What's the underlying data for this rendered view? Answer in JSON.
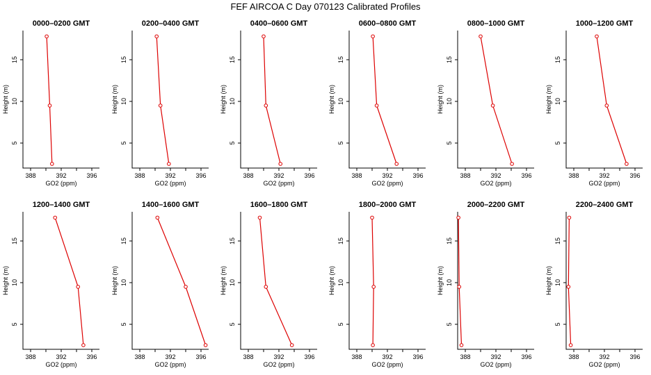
{
  "figure": {
    "title": "FEF AIRCOA C  Day 070123  Calibrated Profiles"
  },
  "colors": {
    "series": "#dd0000",
    "axis": "#000000",
    "background": "#ffffff"
  },
  "chart_data": [
    {
      "type": "line",
      "title": "0000–0200 GMT",
      "xlabel": "GO2 (ppm)",
      "ylabel": "Height (m)",
      "xlim": [
        387,
        397
      ],
      "ylim": [
        2,
        18.5
      ],
      "xticks": [
        388,
        392,
        396
      ],
      "yticks": [
        5,
        10,
        15
      ],
      "x": [
        390.1,
        390.5,
        390.8
      ],
      "y": [
        17.8,
        9.5,
        2.5
      ]
    },
    {
      "type": "line",
      "title": "0200–0400 GMT",
      "xlabel": "GO2 (ppm)",
      "ylabel": "Height (m)",
      "xlim": [
        387,
        397
      ],
      "ylim": [
        2,
        18.5
      ],
      "xticks": [
        388,
        392,
        396
      ],
      "yticks": [
        5,
        10,
        15
      ],
      "x": [
        390.2,
        390.7,
        391.8
      ],
      "y": [
        17.8,
        9.5,
        2.5
      ]
    },
    {
      "type": "line",
      "title": "0400–0600 GMT",
      "xlabel": "GO2 (ppm)",
      "ylabel": "Height (m)",
      "xlim": [
        387,
        397
      ],
      "ylim": [
        2,
        18.5
      ],
      "xticks": [
        388,
        392,
        396
      ],
      "yticks": [
        5,
        10,
        15
      ],
      "x": [
        390.0,
        390.3,
        392.2
      ],
      "y": [
        17.8,
        9.5,
        2.5
      ]
    },
    {
      "type": "line",
      "title": "0600–0800 GMT",
      "xlabel": "GO2 (ppm)",
      "ylabel": "Height (m)",
      "xlim": [
        387,
        397
      ],
      "ylim": [
        2,
        18.5
      ],
      "xticks": [
        388,
        392,
        396
      ],
      "yticks": [
        5,
        10,
        15
      ],
      "x": [
        390.1,
        390.6,
        393.2
      ],
      "y": [
        17.8,
        9.5,
        2.5
      ]
    },
    {
      "type": "line",
      "title": "0800–1000 GMT",
      "xlabel": "GO2 (ppm)",
      "ylabel": "Height (m)",
      "xlim": [
        387,
        397
      ],
      "ylim": [
        2,
        18.5
      ],
      "xticks": [
        388,
        392,
        396
      ],
      "yticks": [
        5,
        10,
        15
      ],
      "x": [
        390.0,
        391.6,
        394.1
      ],
      "y": [
        17.8,
        9.5,
        2.5
      ]
    },
    {
      "type": "line",
      "title": "1000–1200 GMT",
      "xlabel": "GO2 (ppm)",
      "ylabel": "Height (m)",
      "xlim": [
        387,
        397
      ],
      "ylim": [
        2,
        18.5
      ],
      "xticks": [
        388,
        392,
        396
      ],
      "yticks": [
        5,
        10,
        15
      ],
      "x": [
        391.0,
        392.3,
        394.9
      ],
      "y": [
        17.8,
        9.5,
        2.5
      ]
    },
    {
      "type": "line",
      "title": "1200–1400 GMT",
      "xlabel": "GO2 (ppm)",
      "ylabel": "Height (m)",
      "xlim": [
        387,
        397
      ],
      "ylim": [
        2,
        18.5
      ],
      "xticks": [
        388,
        392,
        396
      ],
      "yticks": [
        5,
        10,
        15
      ],
      "x": [
        391.2,
        394.2,
        394.9
      ],
      "y": [
        17.8,
        9.5,
        2.5
      ]
    },
    {
      "type": "line",
      "title": "1400–1600 GMT",
      "xlabel": "GO2 (ppm)",
      "ylabel": "Height (m)",
      "xlim": [
        387,
        397
      ],
      "ylim": [
        2,
        18.5
      ],
      "xticks": [
        388,
        392,
        396
      ],
      "yticks": [
        5,
        10,
        15
      ],
      "x": [
        390.3,
        394.0,
        396.6
      ],
      "y": [
        17.8,
        9.5,
        2.5
      ]
    },
    {
      "type": "line",
      "title": "1600–1800 GMT",
      "xlabel": "GO2 (ppm)",
      "ylabel": "Height (m)",
      "xlim": [
        387,
        397
      ],
      "ylim": [
        2,
        18.5
      ],
      "xticks": [
        388,
        392,
        396
      ],
      "yticks": [
        5,
        10,
        15
      ],
      "x": [
        389.5,
        390.3,
        393.7
      ],
      "y": [
        17.8,
        9.5,
        2.5
      ]
    },
    {
      "type": "line",
      "title": "1800–2000 GMT",
      "xlabel": "GO2 (ppm)",
      "ylabel": "Height (m)",
      "xlim": [
        387,
        397
      ],
      "ylim": [
        2,
        18.5
      ],
      "xticks": [
        388,
        392,
        396
      ],
      "yticks": [
        5,
        10,
        15
      ],
      "x": [
        390.0,
        390.2,
        390.1
      ],
      "y": [
        17.8,
        9.5,
        2.5
      ]
    },
    {
      "type": "line",
      "title": "2000–2200 GMT",
      "xlabel": "GO2 (ppm)",
      "ylabel": "Height (m)",
      "xlim": [
        387,
        397
      ],
      "ylim": [
        2,
        18.5
      ],
      "xticks": [
        388,
        392,
        396
      ],
      "yticks": [
        5,
        10,
        15
      ],
      "x": [
        387.1,
        387.2,
        387.5
      ],
      "y": [
        17.8,
        9.5,
        2.5
      ]
    },
    {
      "type": "line",
      "title": "2200–2400 GMT",
      "xlabel": "GO2 (ppm)",
      "ylabel": "Height (m)",
      "xlim": [
        387,
        397
      ],
      "ylim": [
        2,
        18.5
      ],
      "xticks": [
        388,
        392,
        396
      ],
      "yticks": [
        5,
        10,
        15
      ],
      "x": [
        387.4,
        387.3,
        387.6
      ],
      "y": [
        17.8,
        9.5,
        2.5
      ]
    }
  ]
}
